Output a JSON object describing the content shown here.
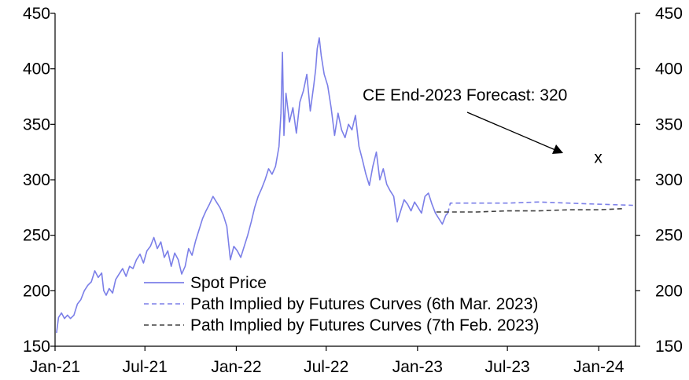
{
  "chart_data": {
    "type": "line",
    "title": "",
    "xlabel": "",
    "ylabel": "",
    "ylim": [
      150,
      450
    ],
    "yticks": [
      150,
      200,
      250,
      300,
      350,
      400,
      450
    ],
    "right_axis_ticks": [
      150,
      200,
      250,
      300,
      350,
      400,
      450
    ],
    "x_ticks": [
      {
        "date": "2021-01-01",
        "label": "Jan-21"
      },
      {
        "date": "2021-07-01",
        "label": "Jul-21"
      },
      {
        "date": "2022-01-01",
        "label": "Jan-22"
      },
      {
        "date": "2022-07-01",
        "label": "Jul-22"
      },
      {
        "date": "2023-01-01",
        "label": "Jan-23"
      },
      {
        "date": "2023-07-01",
        "label": "Jul-23"
      },
      {
        "date": "2024-01-01",
        "label": "Jan-24"
      }
    ],
    "xlim": [
      "2021-01-01",
      "2024-03-15"
    ],
    "grid": false,
    "legend_position": "bottom-center",
    "series": [
      {
        "name": "Spot Price",
        "color": "#7b7fe8",
        "style": "solid",
        "points": [
          [
            "2021-01-04",
            162
          ],
          [
            "2021-01-08",
            176
          ],
          [
            "2021-01-14",
            180
          ],
          [
            "2021-01-20",
            175
          ],
          [
            "2021-01-26",
            178
          ],
          [
            "2021-02-01",
            175
          ],
          [
            "2021-02-08",
            178
          ],
          [
            "2021-02-15",
            188
          ],
          [
            "2021-02-22",
            192
          ],
          [
            "2021-03-01",
            200
          ],
          [
            "2021-03-08",
            205
          ],
          [
            "2021-03-15",
            208
          ],
          [
            "2021-03-22",
            218
          ],
          [
            "2021-03-29",
            212
          ],
          [
            "2021-04-05",
            216
          ],
          [
            "2021-04-09",
            200
          ],
          [
            "2021-04-14",
            196
          ],
          [
            "2021-04-20",
            202
          ],
          [
            "2021-04-27",
            198
          ],
          [
            "2021-05-03",
            210
          ],
          [
            "2021-05-10",
            215
          ],
          [
            "2021-05-17",
            220
          ],
          [
            "2021-05-24",
            213
          ],
          [
            "2021-05-31",
            222
          ],
          [
            "2021-06-07",
            220
          ],
          [
            "2021-06-14",
            228
          ],
          [
            "2021-06-21",
            233
          ],
          [
            "2021-06-28",
            225
          ],
          [
            "2021-07-05",
            236
          ],
          [
            "2021-07-12",
            240
          ],
          [
            "2021-07-19",
            248
          ],
          [
            "2021-07-26",
            238
          ],
          [
            "2021-08-02",
            244
          ],
          [
            "2021-08-09",
            230
          ],
          [
            "2021-08-16",
            236
          ],
          [
            "2021-08-23",
            222
          ],
          [
            "2021-08-30",
            234
          ],
          [
            "2021-09-06",
            228
          ],
          [
            "2021-09-13",
            215
          ],
          [
            "2021-09-20",
            222
          ],
          [
            "2021-09-27",
            238
          ],
          [
            "2021-10-04",
            232
          ],
          [
            "2021-10-11",
            245
          ],
          [
            "2021-10-18",
            255
          ],
          [
            "2021-10-25",
            265
          ],
          [
            "2021-11-01",
            272
          ],
          [
            "2021-11-08",
            278
          ],
          [
            "2021-11-15",
            285
          ],
          [
            "2021-11-22",
            280
          ],
          [
            "2021-11-29",
            275
          ],
          [
            "2021-12-06",
            268
          ],
          [
            "2021-12-13",
            258
          ],
          [
            "2021-12-20",
            228
          ],
          [
            "2021-12-27",
            240
          ],
          [
            "2022-01-03",
            236
          ],
          [
            "2022-01-10",
            230
          ],
          [
            "2022-01-17",
            240
          ],
          [
            "2022-01-24",
            250
          ],
          [
            "2022-01-31",
            262
          ],
          [
            "2022-02-07",
            275
          ],
          [
            "2022-02-14",
            285
          ],
          [
            "2022-02-21",
            292
          ],
          [
            "2022-02-28",
            300
          ],
          [
            "2022-03-07",
            310
          ],
          [
            "2022-03-14",
            305
          ],
          [
            "2022-03-21",
            312
          ],
          [
            "2022-03-28",
            330
          ],
          [
            "2022-04-01",
            360
          ],
          [
            "2022-04-04",
            415
          ],
          [
            "2022-04-07",
            340
          ],
          [
            "2022-04-11",
            378
          ],
          [
            "2022-04-18",
            352
          ],
          [
            "2022-04-25",
            365
          ],
          [
            "2022-05-02",
            342
          ],
          [
            "2022-05-09",
            370
          ],
          [
            "2022-05-16",
            380
          ],
          [
            "2022-05-23",
            395
          ],
          [
            "2022-05-30",
            362
          ],
          [
            "2022-06-06",
            385
          ],
          [
            "2022-06-10",
            400
          ],
          [
            "2022-06-13",
            418
          ],
          [
            "2022-06-17",
            428
          ],
          [
            "2022-06-21",
            412
          ],
          [
            "2022-06-27",
            395
          ],
          [
            "2022-07-04",
            385
          ],
          [
            "2022-07-11",
            365
          ],
          [
            "2022-07-18",
            340
          ],
          [
            "2022-07-25",
            360
          ],
          [
            "2022-08-01",
            345
          ],
          [
            "2022-08-08",
            338
          ],
          [
            "2022-08-15",
            350
          ],
          [
            "2022-08-22",
            345
          ],
          [
            "2022-08-29",
            358
          ],
          [
            "2022-09-05",
            330
          ],
          [
            "2022-09-12",
            318
          ],
          [
            "2022-09-19",
            305
          ],
          [
            "2022-09-26",
            295
          ],
          [
            "2022-10-03",
            312
          ],
          [
            "2022-10-10",
            325
          ],
          [
            "2022-10-17",
            300
          ],
          [
            "2022-10-24",
            310
          ],
          [
            "2022-10-31",
            296
          ],
          [
            "2022-11-07",
            290
          ],
          [
            "2022-11-14",
            285
          ],
          [
            "2022-11-21",
            262
          ],
          [
            "2022-11-28",
            272
          ],
          [
            "2022-12-05",
            282
          ],
          [
            "2022-12-12",
            278
          ],
          [
            "2022-12-19",
            272
          ],
          [
            "2022-12-26",
            280
          ],
          [
            "2023-01-02",
            275
          ],
          [
            "2023-01-09",
            270
          ],
          [
            "2023-01-16",
            285
          ],
          [
            "2023-01-23",
            288
          ],
          [
            "2023-01-30",
            278
          ],
          [
            "2023-02-06",
            270
          ],
          [
            "2023-02-13",
            265
          ],
          [
            "2023-02-20",
            260
          ],
          [
            "2023-02-27",
            268
          ],
          [
            "2023-03-03",
            270
          ]
        ]
      },
      {
        "name": "Path Implied by Futures Curves (6th Mar. 2023)",
        "color": "#7b7fe8",
        "style": "dashed",
        "points": [
          [
            "2023-03-03",
            270
          ],
          [
            "2023-03-08",
            279
          ],
          [
            "2023-05-01",
            279
          ],
          [
            "2023-07-01",
            279
          ],
          [
            "2023-09-01",
            280
          ],
          [
            "2023-11-01",
            279
          ],
          [
            "2024-01-01",
            278
          ],
          [
            "2024-03-10",
            277
          ]
        ]
      },
      {
        "name": "Path Implied by Futures Curves (7th Feb. 2023)",
        "color": "#404040",
        "style": "dashed",
        "points": [
          [
            "2023-02-08",
            271
          ],
          [
            "2023-05-01",
            271
          ],
          [
            "2023-07-01",
            272
          ],
          [
            "2023-09-01",
            272
          ],
          [
            "2023-11-01",
            273
          ],
          [
            "2024-01-01",
            273
          ],
          [
            "2024-02-20",
            274
          ]
        ]
      }
    ],
    "annotations": [
      {
        "text": "CE End-2023 Forecast: 320"
      },
      {
        "text": "x",
        "date": "2023-12-31",
        "value": 320
      }
    ]
  }
}
